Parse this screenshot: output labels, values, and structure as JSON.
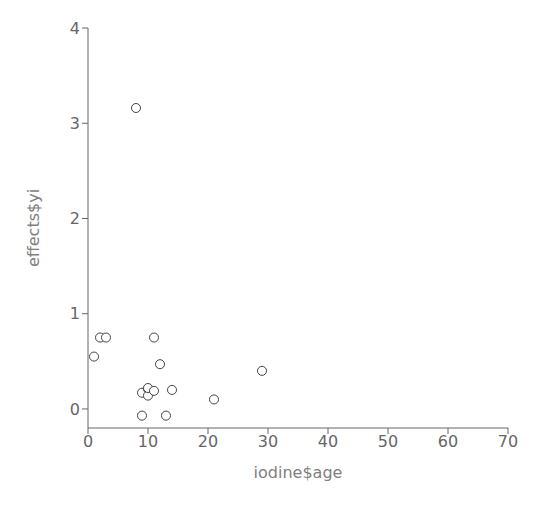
{
  "chart_data": {
    "type": "scatter",
    "x": [
      1,
      2,
      8,
      9,
      9,
      10,
      10,
      10,
      11,
      11,
      12,
      13,
      14,
      21,
      29,
      3
    ],
    "y": [
      0.55,
      0.75,
      3.16,
      -0.07,
      0.17,
      0.21,
      0.14,
      0.22,
      0.19,
      0.75,
      0.47,
      -0.07,
      0.2,
      0.1,
      0.4,
      0.75
    ],
    "xlabel": "iodine$age",
    "ylabel": "effects$yi",
    "xlim": [
      0,
      70
    ],
    "ylim": [
      -0.2,
      4.0
    ],
    "xticks": [
      0,
      10,
      20,
      30,
      40,
      50,
      60,
      70
    ],
    "yticks": [
      0,
      1,
      2,
      3,
      4
    ],
    "color": "#444444",
    "marker": "circle",
    "grid": false
  }
}
